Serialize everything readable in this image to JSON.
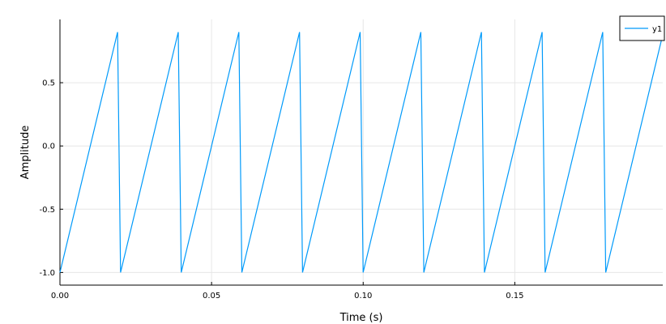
{
  "chart_data": {
    "type": "line",
    "title": "",
    "xlabel": "Time (s)",
    "ylabel": "Amplitude",
    "xlim": [
      0,
      0.1988
    ],
    "ylim": [
      -1.1,
      1.0
    ],
    "grid": true,
    "legend_position": "top-right",
    "x_ticks": [
      0,
      0.05,
      0.1,
      0.15
    ],
    "x_tick_labels": [
      "0.00",
      "0.05",
      "0.10",
      "0.15"
    ],
    "y_ticks": [
      -1.0,
      -0.5,
      0.0,
      0.5
    ],
    "y_tick_labels": [
      "-1.0",
      "-0.5",
      "0.0",
      "0.5"
    ],
    "series": [
      {
        "name": "y1",
        "color": "#009AFA",
        "x": [
          0,
          0.019,
          0.02,
          0.039,
          0.04,
          0.059,
          0.06,
          0.079,
          0.08,
          0.099,
          0.1,
          0.119,
          0.12,
          0.139,
          0.14,
          0.159,
          0.16,
          0.179,
          0.18,
          0.1988
        ],
        "y": [
          -1.0,
          0.9,
          -1.0,
          0.9,
          -1.0,
          0.9,
          -1.0,
          0.9,
          -1.0,
          0.9,
          -1.0,
          0.9,
          -1.0,
          0.9,
          -1.0,
          0.9,
          -1.0,
          0.9,
          -1.0,
          0.88
        ]
      }
    ]
  }
}
